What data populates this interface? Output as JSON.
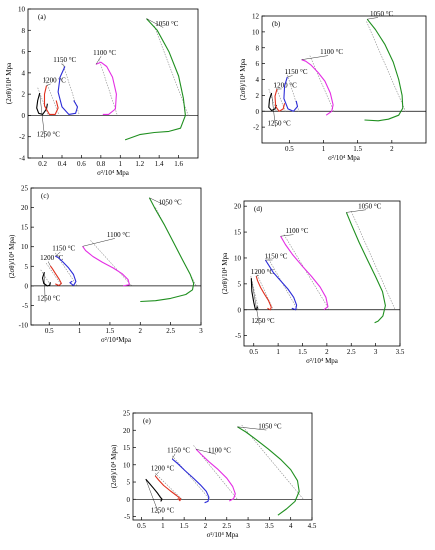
{
  "colors": {
    "1250": "#000000",
    "1200": "#e0301e",
    "1150": "#2b2bd8",
    "1100": "#e42ee4",
    "1050": "#1f8f1f",
    "fit": "#8a8a8a"
  },
  "chart_data": [
    {
      "type": "line",
      "panel_label": "(a)",
      "xlabel": "σ²/10⁴ Mpa",
      "ylabel": "(2σθ)/10⁴ Mpa",
      "xlim": [
        0.05,
        1.8
      ],
      "ylim": [
        -4,
        10
      ],
      "xticks": [
        0.2,
        0.4,
        0.6,
        0.8,
        1.0,
        1.2,
        1.4,
        1.6
      ],
      "yticks": [
        -4,
        -2,
        0,
        2,
        4,
        6,
        8,
        10
      ],
      "series": [
        {
          "name": "1250 °C",
          "color_key": "1250",
          "x": [
            0.17,
            0.15,
            0.14,
            0.16,
            0.2,
            0.24,
            0.25
          ],
          "y": [
            2.1,
            1.4,
            0.7,
            0.2,
            0.1,
            0.6,
            1.1
          ],
          "label_at": [
            0.14,
            -2.0
          ],
          "fit_x": [
            0.15,
            0.26
          ],
          "fit_y": [
            2.6,
            0.0
          ]
        },
        {
          "name": "1200 °C",
          "color_key": "1200",
          "x": [
            0.24,
            0.22,
            0.22,
            0.27,
            0.33,
            0.36,
            0.34
          ],
          "y": [
            2.8,
            2.0,
            0.9,
            0.1,
            0.1,
            0.7,
            1.4
          ],
          "label_at": [
            0.2,
            3.1
          ],
          "fit_x": [
            0.22,
            0.37
          ],
          "fit_y": [
            3.6,
            0.0
          ]
        },
        {
          "name": "1150 °C",
          "color_key": "1150",
          "x": [
            0.43,
            0.38,
            0.36,
            0.4,
            0.47,
            0.54,
            0.56,
            0.52
          ],
          "y": [
            4.6,
            3.6,
            2.2,
            0.8,
            0.1,
            0.2,
            0.8,
            1.4
          ],
          "label_at": [
            0.31,
            5.0
          ],
          "fit_x": [
            0.4,
            0.58
          ],
          "fit_y": [
            5.1,
            0.0
          ]
        },
        {
          "name": "1100 °C",
          "color_key": "1100",
          "x": [
            0.75,
            0.8,
            0.86,
            0.92,
            0.96,
            0.95,
            0.88,
            0.82
          ],
          "y": [
            4.8,
            5.0,
            4.6,
            3.6,
            2.0,
            0.6,
            0.1,
            0.1
          ],
          "label_at": [
            0.72,
            5.7
          ],
          "fit_x": [
            0.78,
            0.97
          ],
          "fit_y": [
            5.3,
            0.0
          ]
        },
        {
          "name": "1050 °C",
          "color_key": "1050",
          "x": [
            1.27,
            1.38,
            1.5,
            1.6,
            1.65,
            1.67,
            1.62,
            1.5,
            1.35,
            1.2,
            1.05
          ],
          "y": [
            9.1,
            8.0,
            6.0,
            3.7,
            1.6,
            0.0,
            -1.2,
            -1.5,
            -1.6,
            -1.8,
            -2.3
          ],
          "label_at": [
            1.36,
            8.4
          ],
          "fit_x": [
            1.35,
            1.7
          ],
          "fit_y": [
            8.4,
            0.0
          ]
        }
      ]
    },
    {
      "type": "line",
      "panel_label": "(b)",
      "xlabel": "σ²/10⁴ Mpa",
      "ylabel": "(2σθ)/10⁴ Mpa",
      "xlim": [
        0.1,
        2.5
      ],
      "ylim": [
        -4,
        12
      ],
      "xticks": [
        0.5,
        1.0,
        1.5,
        2.0
      ],
      "yticks": [
        -2,
        0,
        2,
        4,
        6,
        8,
        10,
        12
      ],
      "series": [
        {
          "name": "1250 °C",
          "color_key": "1250",
          "x": [
            0.24,
            0.21,
            0.2,
            0.24,
            0.29,
            0.31
          ],
          "y": [
            2.3,
            1.5,
            0.5,
            0.1,
            0.3,
            0.8
          ],
          "label_at": [
            0.18,
            -1.8
          ],
          "fit_x": [
            0.2,
            0.31
          ],
          "fit_y": [
            2.8,
            0.0
          ]
        },
        {
          "name": "1200 °C",
          "color_key": "1200",
          "x": [
            0.32,
            0.29,
            0.3,
            0.35,
            0.41,
            0.43
          ],
          "y": [
            2.8,
            1.9,
            0.6,
            0.0,
            0.3,
            1.0
          ],
          "label_at": [
            0.27,
            3.0
          ],
          "fit_x": [
            0.28,
            0.44
          ],
          "fit_y": [
            3.6,
            0.0
          ]
        },
        {
          "name": "1150 °C",
          "color_key": "1150",
          "x": [
            0.47,
            0.43,
            0.42,
            0.48,
            0.56,
            0.62,
            0.6
          ],
          "y": [
            4.3,
            3.2,
            1.6,
            0.3,
            0.0,
            0.6,
            1.3
          ],
          "label_at": [
            0.43,
            4.7
          ],
          "fit_x": [
            0.46,
            0.64
          ],
          "fit_y": [
            4.9,
            0.0
          ]
        },
        {
          "name": "1100 °C",
          "color_key": "1100",
          "x": [
            0.68,
            0.74,
            0.82,
            0.92,
            1.02,
            1.1,
            1.14,
            1.12,
            1.04
          ],
          "y": [
            6.5,
            6.3,
            5.8,
            4.9,
            3.8,
            2.3,
            0.8,
            0.0,
            -0.5
          ],
          "label_at": [
            0.95,
            7.2
          ],
          "fit_x": [
            0.8,
            1.15
          ],
          "fit_y": [
            7.0,
            0.0
          ]
        },
        {
          "name": "1050 °C",
          "color_key": "1050",
          "x": [
            1.64,
            1.76,
            1.9,
            2.02,
            2.1,
            2.15,
            2.16,
            2.1,
            1.95,
            1.8,
            1.6
          ],
          "y": [
            11.6,
            10.3,
            8.4,
            6.2,
            4.0,
            2.0,
            0.4,
            -0.5,
            -1.0,
            -1.2,
            -1.1
          ],
          "label_at": [
            1.68,
            12.0
          ],
          "fit_x": [
            1.63,
            2.2
          ],
          "fit_y": [
            11.3,
            0.0
          ]
        }
      ]
    },
    {
      "type": "line",
      "panel_label": "(c)",
      "xlabel": "σ²/10⁴Mpa",
      "ylabel": "(2σθ)/10⁴ Mpa)",
      "xlim": [
        0.2,
        3.0
      ],
      "ylim": [
        -10,
        25
      ],
      "xticks": [
        0.5,
        1.0,
        1.5,
        2.0,
        2.5,
        3.0
      ],
      "yticks": [
        -10,
        -5,
        0,
        5,
        10,
        15,
        20,
        25
      ],
      "series": [
        {
          "name": "1250 °C",
          "color_key": "1250",
          "x": [
            0.42,
            0.39,
            0.41,
            0.47,
            0.51,
            0.52
          ],
          "y": [
            3.5,
            2.0,
            0.6,
            0.0,
            0.2,
            0.9
          ],
          "label_at": [
            0.3,
            -3.8
          ],
          "fit_x": [
            0.36,
            0.53
          ],
          "fit_y": [
            4.1,
            0.0
          ]
        },
        {
          "name": "1200 °C",
          "color_key": "1200",
          "x": [
            0.52,
            0.55,
            0.6,
            0.66,
            0.7,
            0.66,
            0.6
          ],
          "y": [
            5.1,
            4.4,
            3.2,
            1.8,
            0.6,
            0.1,
            0.5
          ],
          "label_at": [
            0.35,
            6.6
          ],
          "fit_x": [
            0.45,
            0.71
          ],
          "fit_y": [
            5.8,
            0.0
          ]
        },
        {
          "name": "1150 °C",
          "color_key": "1150",
          "x": [
            0.6,
            0.65,
            0.72,
            0.82,
            0.9,
            0.94,
            0.9,
            0.84,
            0.88
          ],
          "y": [
            7.6,
            7.2,
            6.2,
            4.6,
            2.9,
            1.1,
            0.1,
            0.8,
            1.2
          ],
          "label_at": [
            0.55,
            9.0
          ],
          "fit_x": [
            0.6,
            0.96
          ],
          "fit_y": [
            8.4,
            0.0
          ]
        },
        {
          "name": "1100 °C",
          "color_key": "1100",
          "x": [
            1.05,
            1.1,
            1.22,
            1.38,
            1.55,
            1.7,
            1.8,
            1.82,
            1.72
          ],
          "y": [
            10.1,
            9.0,
            7.5,
            6.0,
            4.6,
            3.1,
            1.6,
            0.3,
            0.0
          ],
          "label_at": [
            1.45,
            12.5
          ],
          "fit_x": [
            1.18,
            1.86
          ],
          "fit_y": [
            11.6,
            0.0
          ]
        },
        {
          "name": "1050 °C",
          "color_key": "1050",
          "x": [
            2.15,
            2.25,
            2.4,
            2.55,
            2.7,
            2.82,
            2.88,
            2.86,
            2.75,
            2.5,
            2.25,
            2.0
          ],
          "y": [
            22.5,
            19.5,
            15.5,
            11.0,
            6.5,
            3.0,
            0.6,
            -1.0,
            -2.2,
            -3.2,
            -3.8,
            -4.0
          ],
          "label_at": [
            2.3,
            20.8
          ],
          "fit_x": [
            2.25,
            2.92
          ],
          "fit_y": [
            20.0,
            0.0
          ]
        }
      ]
    },
    {
      "type": "line",
      "panel_label": "(d)",
      "xlabel": "σ²/10⁴ Mpa",
      "ylabel": "(2σθ)/10⁴ Mpa",
      "xlim": [
        0.3,
        3.5
      ],
      "ylim": [
        -7,
        21
      ],
      "xticks": [
        0.5,
        1.0,
        1.5,
        2.0,
        2.5,
        3.0,
        3.5
      ],
      "yticks": [
        -5,
        0,
        5,
        10,
        15,
        20
      ],
      "series": [
        {
          "name": "1250 °C",
          "color_key": "1250",
          "x": [
            0.45,
            0.46,
            0.5,
            0.53,
            0.56,
            0.58
          ],
          "y": [
            6.1,
            3.6,
            1.4,
            0.2,
            0.0,
            0.6
          ],
          "label_at": [
            0.45,
            -2.6
          ],
          "fit_x": [
            0.44,
            0.6
          ],
          "fit_y": [
            6.5,
            0.0
          ]
        },
        {
          "name": "1200 °C",
          "color_key": "1200",
          "x": [
            0.55,
            0.58,
            0.64,
            0.72,
            0.8,
            0.86,
            0.84,
            0.78
          ],
          "y": [
            6.5,
            5.6,
            4.3,
            3.0,
            1.8,
            0.5,
            0.0,
            0.3
          ],
          "label_at": [
            0.44,
            6.9
          ],
          "fit_x": [
            0.55,
            0.9
          ],
          "fit_y": [
            7.2,
            0.0
          ]
        },
        {
          "name": "1150 °C",
          "color_key": "1150",
          "x": [
            0.74,
            0.8,
            0.9,
            1.05,
            1.2,
            1.32,
            1.38,
            1.36,
            1.28
          ],
          "y": [
            9.6,
            8.7,
            7.2,
            5.6,
            4.0,
            2.4,
            0.9,
            0.0,
            0.3
          ],
          "label_at": [
            0.72,
            9.9
          ],
          "fit_x": [
            0.78,
            1.4
          ],
          "fit_y": [
            10.2,
            0.0
          ]
        },
        {
          "name": "1100 °C",
          "color_key": "1100",
          "x": [
            1.05,
            1.15,
            1.3,
            1.48,
            1.68,
            1.86,
            1.98,
            2.02,
            1.94
          ],
          "y": [
            14.2,
            12.6,
            10.6,
            8.6,
            6.5,
            4.4,
            2.4,
            0.6,
            0.0
          ],
          "label_at": [
            1.15,
            14.8
          ],
          "fit_x": [
            1.12,
            2.05
          ],
          "fit_y": [
            14.5,
            0.0
          ]
        },
        {
          "name": "1050 °C",
          "color_key": "1050",
          "x": [
            2.4,
            2.5,
            2.66,
            2.84,
            3.0,
            3.14,
            3.2,
            3.15,
            3.05,
            2.98
          ],
          "y": [
            18.8,
            16.5,
            13.0,
            9.5,
            6.4,
            3.5,
            0.8,
            -1.2,
            -2.2,
            -2.5
          ],
          "label_at": [
            2.64,
            19.6
          ],
          "fit_x": [
            2.5,
            3.4
          ],
          "fit_y": [
            19.0,
            0.0
          ]
        }
      ]
    },
    {
      "type": "line",
      "panel_label": "(e)",
      "xlabel": "σ²/10⁴ Mpa",
      "ylabel": "(2σθ)/10⁴ Mpa)",
      "xlim": [
        0.3,
        4.5
      ],
      "ylim": [
        -6,
        25
      ],
      "xticks": [
        0.5,
        1.0,
        1.5,
        2.0,
        2.5,
        3.0,
        3.5,
        4.0,
        4.5
      ],
      "yticks": [
        -5,
        0,
        5,
        10,
        15,
        20,
        25
      ],
      "series": [
        {
          "name": "1250 °C",
          "color_key": "1250",
          "x": [
            0.6,
            0.68,
            0.78,
            0.88,
            0.94,
            0.98,
            0.95
          ],
          "y": [
            5.8,
            4.7,
            3.2,
            1.7,
            0.6,
            0.0,
            -0.6
          ],
          "label_at": [
            0.72,
            -3.8
          ],
          "fit_x": [
            0.6,
            1.0
          ],
          "fit_y": [
            5.9,
            0.0
          ]
        },
        {
          "name": "1200 °C",
          "color_key": "1200",
          "x": [
            0.82,
            0.9,
            1.02,
            1.18,
            1.32,
            1.42,
            1.4,
            1.35
          ],
          "y": [
            6.8,
            5.6,
            4.0,
            2.4,
            1.1,
            0.1,
            -0.4,
            0.3
          ],
          "label_at": [
            0.72,
            8.4
          ],
          "fit_x": [
            0.82,
            1.45
          ],
          "fit_y": [
            7.5,
            0.0
          ]
        },
        {
          "name": "1150 °C",
          "color_key": "1150",
          "x": [
            1.22,
            1.35,
            1.52,
            1.7,
            1.88,
            2.02,
            2.08,
            2.06,
            1.98
          ],
          "y": [
            11.7,
            10.3,
            8.3,
            6.3,
            4.2,
            2.3,
            0.6,
            -0.6,
            -1.0
          ],
          "label_at": [
            1.1,
            13.6
          ],
          "fit_x": [
            1.22,
            2.1
          ],
          "fit_y": [
            12.6,
            0.0
          ]
        },
        {
          "name": "1100 °C",
          "color_key": "1100",
          "x": [
            1.78,
            1.9,
            2.08,
            2.3,
            2.5,
            2.64,
            2.7,
            2.66,
            2.56
          ],
          "y": [
            14.5,
            13.0,
            10.9,
            8.6,
            6.1,
            3.7,
            1.6,
            0.2,
            -0.5
          ],
          "label_at": [
            2.06,
            13.5
          ],
          "fit_x": [
            1.72,
            2.75
          ],
          "fit_y": [
            15.6,
            0.0
          ]
        },
        {
          "name": "1050 °C",
          "color_key": "1050",
          "x": [
            2.75,
            2.95,
            3.2,
            3.48,
            3.76,
            4.0,
            4.16,
            4.2,
            4.1,
            3.9,
            3.7
          ],
          "y": [
            21.0,
            19.5,
            17.2,
            14.5,
            11.6,
            8.6,
            5.4,
            2.3,
            -0.6,
            -2.8,
            -4.6
          ],
          "label_at": [
            3.24,
            20.5
          ],
          "fit_x": [
            2.85,
            4.3
          ],
          "fit_y": [
            21.5,
            0.0
          ]
        }
      ]
    }
  ]
}
